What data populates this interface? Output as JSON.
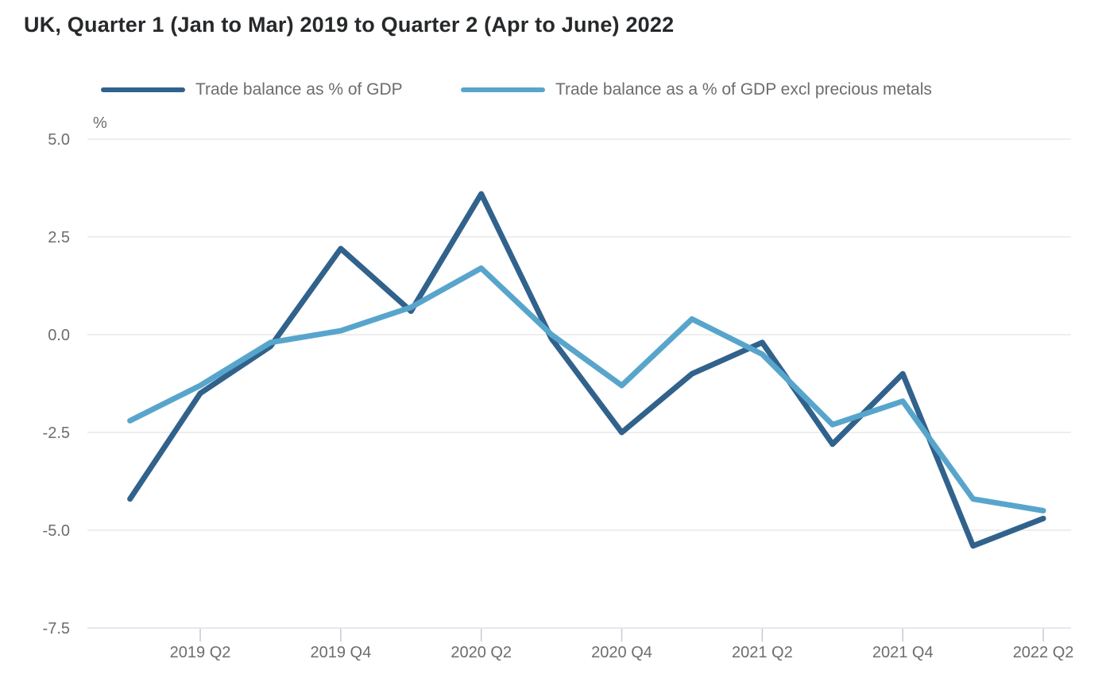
{
  "page": {
    "title": "UK, Quarter 1 (Jan to Mar) 2019 to Quarter 2 (Apr to June) 2022"
  },
  "legend": {
    "items": [
      {
        "label": "Trade balance as % of GDP",
        "color": "#31628c"
      },
      {
        "label": "Trade balance as a % of GDP excl precious metals",
        "color": "#58a5cc"
      }
    ]
  },
  "colors": {
    "title_text": "#26282a",
    "axis_text": "#6d6d6d",
    "legend_text": "#6d6d6d",
    "gridline": "#e9e9e9",
    "baseline": "#d8e2ec",
    "tick": "#c9c9c9",
    "series_dark_blue": "#31628c",
    "series_light_blue": "#58a5cc",
    "background": "#ffffff"
  },
  "chart_data": {
    "type": "line",
    "title": "UK, Quarter 1 (Jan to Mar) 2019 to Quarter 2 (Apr to June) 2022",
    "unit_label": "%",
    "xlabel": "",
    "ylabel": "%",
    "ylim": [
      -7.5,
      5.0
    ],
    "grid": "horizontal",
    "legend_position": "top",
    "x": [
      "2019 Q1",
      "2019 Q2",
      "2019 Q3",
      "2019 Q4",
      "2020 Q1",
      "2020 Q2",
      "2020 Q3",
      "2020 Q4",
      "2021 Q1",
      "2021 Q2",
      "2021 Q3",
      "2021 Q4",
      "2022 Q1",
      "2022 Q2"
    ],
    "x_tick_labels": [
      "2019 Q2",
      "2019 Q4",
      "2020 Q2",
      "2020 Q4",
      "2021 Q2",
      "2021 Q4",
      "2022 Q2"
    ],
    "y_tick_labels": [
      "5.0",
      "2.5",
      "0.0",
      "-2.5",
      "-5.0",
      "-7.5"
    ],
    "series": [
      {
        "name": "Trade balance as % of GDP",
        "color": "#31628c",
        "values": [
          -4.2,
          -1.5,
          -0.3,
          2.2,
          0.6,
          3.6,
          -0.1,
          -2.5,
          -1.0,
          -0.2,
          -2.8,
          -1.0,
          -5.4,
          -4.7
        ]
      },
      {
        "name": "Trade balance as a % of GDP excl precious metals",
        "color": "#58a5cc",
        "values": [
          -2.2,
          -1.3,
          -0.2,
          0.1,
          0.7,
          1.7,
          0.0,
          -1.3,
          0.4,
          -0.5,
          -2.3,
          -1.7,
          -4.2,
          -4.5
        ]
      }
    ]
  }
}
